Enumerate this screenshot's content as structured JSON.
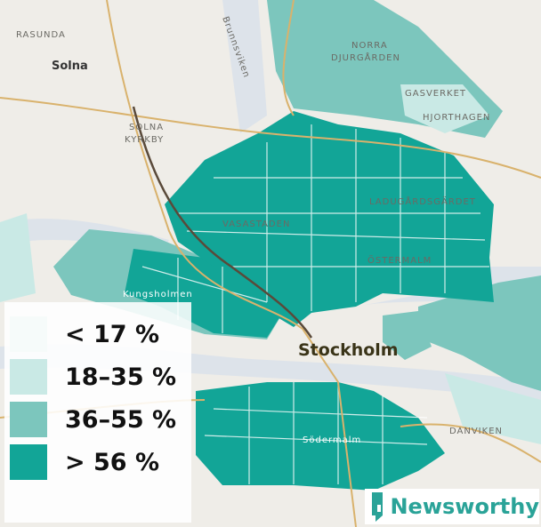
{
  "legend": {
    "items": [
      {
        "label": "< 17 %",
        "color": "#f6fbfa"
      },
      {
        "label": "18–35 %",
        "color": "#c9e9e5"
      },
      {
        "label": "36–55 %",
        "color": "#7cc6bd"
      },
      {
        "label": "> 56 %",
        "color": "#12a597"
      }
    ]
  },
  "places": [
    {
      "lines": [
        "RASUNDA"
      ]
    },
    {
      "lines": [
        "Solna"
      ]
    },
    {
      "lines": [
        "SOLNA",
        "KYRKBY"
      ]
    },
    {
      "lines": [
        "Brunnsviken"
      ]
    },
    {
      "lines": [
        "NORRA",
        "DJURGÅRDEN"
      ]
    },
    {
      "lines": [
        "GASVERKET"
      ]
    },
    {
      "lines": [
        "HJORTHAGEN"
      ]
    },
    {
      "lines": [
        "LADUGÅRDSGÄRDET"
      ]
    },
    {
      "lines": [
        "VASASTADEN"
      ]
    },
    {
      "lines": [
        "ÖSTERMALM"
      ]
    },
    {
      "lines": [
        "Kungsholmen"
      ]
    },
    {
      "lines": [
        "Stockholm"
      ]
    },
    {
      "lines": [
        "Södermalm"
      ]
    },
    {
      "lines": [
        "DANVIKEN"
      ]
    }
  ],
  "logo": {
    "text": "Newsworthy"
  }
}
